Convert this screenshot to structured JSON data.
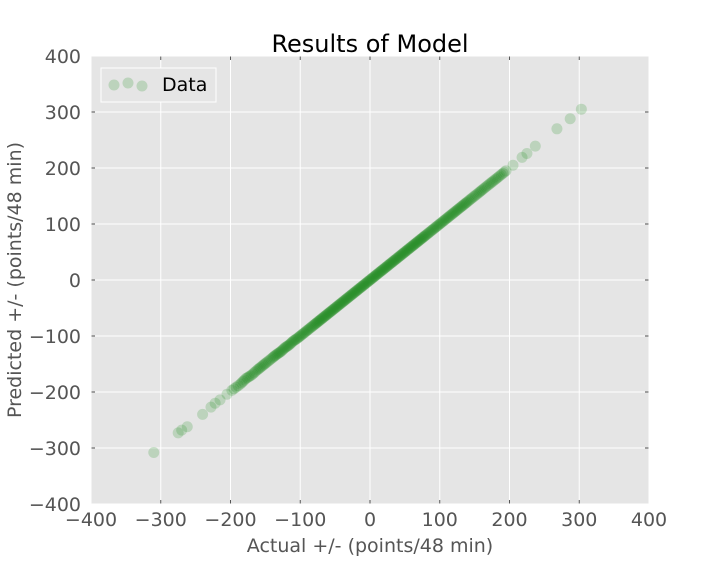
{
  "chart_data": {
    "type": "scatter",
    "title": "Results of Model",
    "xlabel": "Actual +/- (points/48 min)",
    "ylabel": "Predicted +/- (points/48 min)",
    "xlim": [
      -400,
      400
    ],
    "ylim": [
      -400,
      400
    ],
    "xticks": [
      -400,
      -300,
      -200,
      -100,
      0,
      100,
      200,
      300,
      400
    ],
    "yticks": [
      -400,
      -300,
      -200,
      -100,
      0,
      100,
      200,
      300,
      400
    ],
    "xtick_labels": [
      "−400",
      "−300",
      "−200",
      "−100",
      "0",
      "100",
      "200",
      "300",
      "400"
    ],
    "ytick_labels": [
      "−400",
      "−300",
      "−200",
      "−100",
      "0",
      "100",
      "200",
      "300",
      "400"
    ],
    "grid": true,
    "legend": {
      "position": "top-left",
      "entries": [
        "Data"
      ]
    },
    "marker_color": "#1a8a1a",
    "background_color": "#e5e5e5",
    "series": [
      {
        "name": "Data",
        "points": [
          [
            -310,
            -308
          ],
          [
            -275,
            -273
          ],
          [
            -270,
            -268
          ],
          [
            -262,
            -262
          ],
          [
            -240,
            -240
          ],
          [
            -228,
            -227
          ],
          [
            -222,
            -220
          ],
          [
            -215,
            -214
          ],
          [
            -205,
            -204
          ],
          [
            -198,
            -197
          ],
          [
            -186,
            -186
          ],
          [
            -178,
            -176
          ],
          [
            -170,
            -170
          ],
          [
            -162,
            -161
          ],
          [
            -155,
            -154
          ],
          [
            -148,
            -147
          ],
          [
            -140,
            -139
          ],
          [
            -134,
            -133
          ],
          [
            -128,
            -128
          ],
          [
            -122,
            -121
          ],
          [
            -116,
            -116
          ],
          [
            -110,
            -109
          ],
          [
            -104,
            -104
          ],
          [
            -98,
            -98
          ],
          [
            -92,
            -92
          ],
          [
            -86,
            -86
          ],
          [
            -80,
            -80
          ],
          [
            -75,
            -75
          ],
          [
            -70,
            -70
          ],
          [
            -65,
            -65
          ],
          [
            -60,
            -60
          ],
          [
            -55,
            -55
          ],
          [
            -50,
            -50
          ],
          [
            -45,
            -45
          ],
          [
            -40,
            -40
          ],
          [
            -35,
            -35
          ],
          [
            -30,
            -30
          ],
          [
            -25,
            -25
          ],
          [
            -20,
            -20
          ],
          [
            -15,
            -15
          ],
          [
            -10,
            -10
          ],
          [
            -5,
            -5
          ],
          [
            0,
            0
          ],
          [
            5,
            5
          ],
          [
            10,
            10
          ],
          [
            15,
            15
          ],
          [
            20,
            20
          ],
          [
            25,
            25
          ],
          [
            30,
            30
          ],
          [
            35,
            35
          ],
          [
            40,
            40
          ],
          [
            45,
            45
          ],
          [
            50,
            50
          ],
          [
            55,
            55
          ],
          [
            60,
            60
          ],
          [
            65,
            65
          ],
          [
            70,
            70
          ],
          [
            75,
            75
          ],
          [
            80,
            80
          ],
          [
            86,
            86
          ],
          [
            92,
            92
          ],
          [
            98,
            98
          ],
          [
            104,
            104
          ],
          [
            110,
            110
          ],
          [
            116,
            116
          ],
          [
            122,
            122
          ],
          [
            128,
            128
          ],
          [
            134,
            134
          ],
          [
            140,
            140
          ],
          [
            147,
            147
          ],
          [
            155,
            155
          ],
          [
            162,
            162
          ],
          [
            170,
            170
          ],
          [
            178,
            178
          ],
          [
            186,
            186
          ],
          [
            195,
            195
          ],
          [
            205,
            205
          ],
          [
            218,
            219
          ],
          [
            225,
            226
          ],
          [
            237,
            239
          ],
          [
            268,
            270
          ],
          [
            287,
            288
          ],
          [
            303,
            305
          ]
        ]
      }
    ]
  }
}
